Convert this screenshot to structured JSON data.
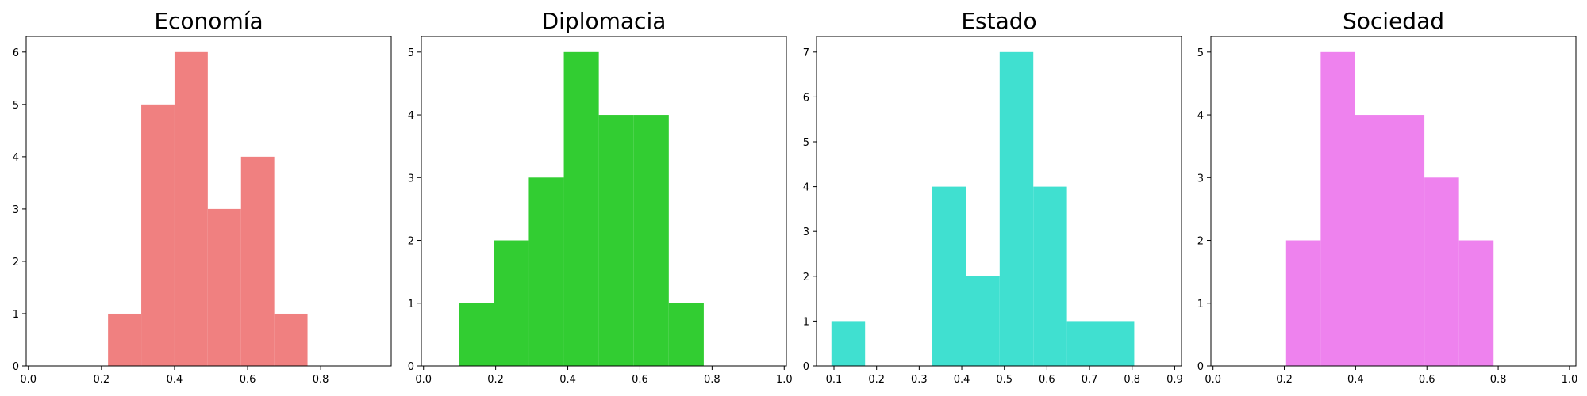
{
  "chart_data": [
    {
      "type": "bar",
      "title": "Economía",
      "color": "#f08080",
      "bins": [
        {
          "x0": 0.218,
          "x1": 0.309,
          "count": 1
        },
        {
          "x0": 0.309,
          "x1": 0.4,
          "count": 5
        },
        {
          "x0": 0.4,
          "x1": 0.491,
          "count": 6
        },
        {
          "x0": 0.491,
          "x1": 0.582,
          "count": 3
        },
        {
          "x0": 0.582,
          "x1": 0.673,
          "count": 4
        },
        {
          "x0": 0.673,
          "x1": 0.764,
          "count": 1
        }
      ],
      "xlim": [
        -0.006,
        0.993
      ],
      "ylim": [
        0,
        6.3
      ],
      "xticks": [
        0.0,
        0.2,
        0.4,
        0.6,
        0.8
      ],
      "xtick_labels": [
        "0.0",
        "0.2",
        "0.4",
        "0.6",
        "0.8"
      ],
      "yticks": [
        0,
        1,
        2,
        3,
        4,
        5,
        6
      ],
      "ytick_labels": [
        "0",
        "1",
        "2",
        "3",
        "4",
        "5",
        "6"
      ],
      "xlabel": "",
      "ylabel": "",
      "grid": false
    },
    {
      "type": "bar",
      "title": "Diplomacia",
      "color": "#32cd32",
      "bins": [
        {
          "x0": 0.098,
          "x1": 0.195,
          "count": 1
        },
        {
          "x0": 0.195,
          "x1": 0.292,
          "count": 2
        },
        {
          "x0": 0.292,
          "x1": 0.389,
          "count": 3
        },
        {
          "x0": 0.389,
          "x1": 0.486,
          "count": 5
        },
        {
          "x0": 0.486,
          "x1": 0.583,
          "count": 4
        },
        {
          "x0": 0.583,
          "x1": 0.68,
          "count": 4
        },
        {
          "x0": 0.68,
          "x1": 0.777,
          "count": 1
        }
      ],
      "xlim": [
        -0.006,
        1.006
      ],
      "ylim": [
        0,
        5.25
      ],
      "xticks": [
        0.0,
        0.2,
        0.4,
        0.6,
        0.8,
        1.0
      ],
      "xtick_labels": [
        "0.0",
        "0.2",
        "0.4",
        "0.6",
        "0.8",
        "1.0"
      ],
      "yticks": [
        0,
        1,
        2,
        3,
        4,
        5
      ],
      "ytick_labels": [
        "0",
        "1",
        "2",
        "3",
        "4",
        "5"
      ],
      "xlabel": "",
      "ylabel": "",
      "grid": false
    },
    {
      "type": "bar",
      "title": "Estado",
      "color": "#40e0d0",
      "bins": [
        {
          "x0": 0.094,
          "x1": 0.173,
          "count": 1
        },
        {
          "x0": 0.173,
          "x1": 0.252,
          "count": 0
        },
        {
          "x0": 0.252,
          "x1": 0.331,
          "count": 0
        },
        {
          "x0": 0.331,
          "x1": 0.41,
          "count": 4
        },
        {
          "x0": 0.41,
          "x1": 0.489,
          "count": 2
        },
        {
          "x0": 0.489,
          "x1": 0.568,
          "count": 7
        },
        {
          "x0": 0.568,
          "x1": 0.647,
          "count": 4
        },
        {
          "x0": 0.647,
          "x1": 0.726,
          "count": 1
        },
        {
          "x0": 0.726,
          "x1": 0.805,
          "count": 1
        }
      ],
      "xlim": [
        0.059,
        0.916
      ],
      "ylim": [
        0,
        7.35
      ],
      "xticks": [
        0.1,
        0.2,
        0.3,
        0.4,
        0.5,
        0.6,
        0.7,
        0.8,
        0.9
      ],
      "xtick_labels": [
        "0.1",
        "0.2",
        "0.3",
        "0.4",
        "0.5",
        "0.6",
        "0.7",
        "0.8",
        "0.9"
      ],
      "yticks": [
        0,
        1,
        2,
        3,
        4,
        5,
        6,
        7
      ],
      "ytick_labels": [
        "0",
        "1",
        "2",
        "3",
        "4",
        "5",
        "6",
        "7"
      ],
      "xlabel": "",
      "ylabel": "",
      "grid": false
    },
    {
      "type": "bar",
      "title": "Sociedad",
      "color": "#ee82ee",
      "bins": [
        {
          "x0": 0.205,
          "x1": 0.302,
          "count": 2
        },
        {
          "x0": 0.302,
          "x1": 0.399,
          "count": 5
        },
        {
          "x0": 0.399,
          "x1": 0.496,
          "count": 4
        },
        {
          "x0": 0.496,
          "x1": 0.593,
          "count": 4
        },
        {
          "x0": 0.593,
          "x1": 0.69,
          "count": 3
        },
        {
          "x0": 0.69,
          "x1": 0.787,
          "count": 2
        }
      ],
      "xlim": [
        -0.006,
        1.018
      ],
      "ylim": [
        0,
        5.25
      ],
      "xticks": [
        0.0,
        0.2,
        0.4,
        0.6,
        0.8,
        1.0
      ],
      "xtick_labels": [
        "0.0",
        "0.2",
        "0.4",
        "0.6",
        "0.8",
        "1.0"
      ],
      "yticks": [
        0,
        1,
        2,
        3,
        4,
        5
      ],
      "ytick_labels": [
        "0",
        "1",
        "2",
        "3",
        "4",
        "5"
      ],
      "xlabel": "",
      "ylabel": "",
      "grid": false
    }
  ]
}
